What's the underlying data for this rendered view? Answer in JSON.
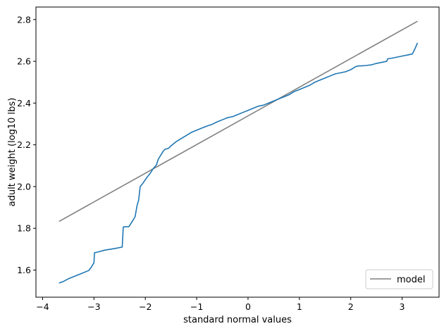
{
  "chart_data": {
    "type": "line",
    "title": "",
    "xlabel": "standard normal values",
    "ylabel": "adult weight (log10 lbs)",
    "xlim": [
      -4.13,
      3.72
    ],
    "ylim": [
      1.47,
      2.86
    ],
    "xticks": [
      -4,
      -3,
      -2,
      -1,
      0,
      1,
      2,
      3
    ],
    "yticks": [
      1.6,
      1.8,
      2.0,
      2.2,
      2.4,
      2.6,
      2.8
    ],
    "xtick_labels": [
      "−4",
      "−3",
      "−2",
      "−1",
      "0",
      "1",
      "2",
      "3"
    ],
    "ytick_labels": [
      "1.6",
      "1.8",
      "2.0",
      "2.2",
      "2.4",
      "2.6",
      "2.8"
    ],
    "grid": false,
    "legend_position": "lower-right",
    "series": [
      {
        "name": "model",
        "color": "#808080",
        "x": [
          -3.68,
          3.3
        ],
        "y": [
          1.833,
          2.792
        ]
      },
      {
        "name": "",
        "color": "#1f77b4",
        "x": [
          -3.68,
          -3.6,
          -3.5,
          -3.3,
          -3.1,
          -3.05,
          -3.0,
          -2.99,
          -2.9,
          -2.8,
          -2.6,
          -2.45,
          -2.43,
          -2.42,
          -2.32,
          -2.25,
          -2.2,
          -2.16,
          -2.13,
          -2.1,
          -2.05,
          -1.98,
          -1.9,
          -1.85,
          -1.78,
          -1.75,
          -1.7,
          -1.65,
          -1.62,
          -1.55,
          -1.5,
          -1.4,
          -1.3,
          -1.2,
          -1.1,
          -1.0,
          -0.9,
          -0.8,
          -0.7,
          -0.6,
          -0.5,
          -0.4,
          -0.3,
          -0.2,
          -0.1,
          0.0,
          0.1,
          0.2,
          0.3,
          0.4,
          0.5,
          0.6,
          0.7,
          0.8,
          0.9,
          1.0,
          1.1,
          1.2,
          1.3,
          1.4,
          1.5,
          1.6,
          1.7,
          1.8,
          1.9,
          2.0,
          2.1,
          2.15,
          2.2,
          2.3,
          2.4,
          2.5,
          2.6,
          2.7,
          2.72,
          2.8,
          2.9,
          3.0,
          3.1,
          3.2,
          3.25,
          3.3
        ],
        "y": [
          1.538,
          1.545,
          1.558,
          1.578,
          1.598,
          1.615,
          1.635,
          1.683,
          1.688,
          1.695,
          1.703,
          1.71,
          1.805,
          1.807,
          1.808,
          1.835,
          1.855,
          1.91,
          1.935,
          2.0,
          2.015,
          2.04,
          2.065,
          2.085,
          2.105,
          2.13,
          2.15,
          2.17,
          2.178,
          2.183,
          2.195,
          2.215,
          2.23,
          2.245,
          2.26,
          2.27,
          2.28,
          2.29,
          2.298,
          2.31,
          2.32,
          2.33,
          2.335,
          2.345,
          2.355,
          2.365,
          2.375,
          2.385,
          2.39,
          2.4,
          2.41,
          2.42,
          2.43,
          2.44,
          2.455,
          2.465,
          2.475,
          2.485,
          2.5,
          2.51,
          2.52,
          2.53,
          2.54,
          2.545,
          2.55,
          2.56,
          2.575,
          2.578,
          2.578,
          2.58,
          2.583,
          2.59,
          2.595,
          2.6,
          2.612,
          2.615,
          2.62,
          2.625,
          2.63,
          2.635,
          2.66,
          2.688
        ]
      }
    ]
  }
}
